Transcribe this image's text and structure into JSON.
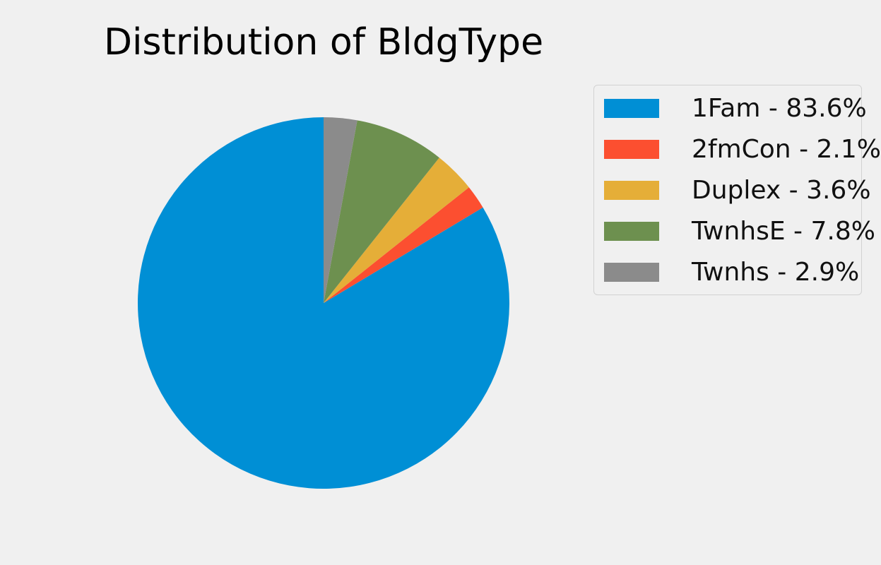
{
  "chart_data": {
    "type": "pie",
    "title": "Distribution of BldgType",
    "categories": [
      "1Fam",
      "2fmCon",
      "Duplex",
      "TwnhsE",
      "Twnhs"
    ],
    "values": [
      83.6,
      2.1,
      3.6,
      7.8,
      2.9
    ],
    "colors": [
      "#008fd5",
      "#fc4f30",
      "#e5ae38",
      "#6d904f",
      "#8b8b8b"
    ],
    "legend": {
      "placement": "right",
      "labels": [
        "1Fam - 83.6%",
        "2fmCon - 2.1%",
        "Duplex - 3.6%",
        "TwnhsE - 7.8%",
        "Twnhs - 2.9%"
      ]
    },
    "start_angle": "top, counterclockwise"
  }
}
